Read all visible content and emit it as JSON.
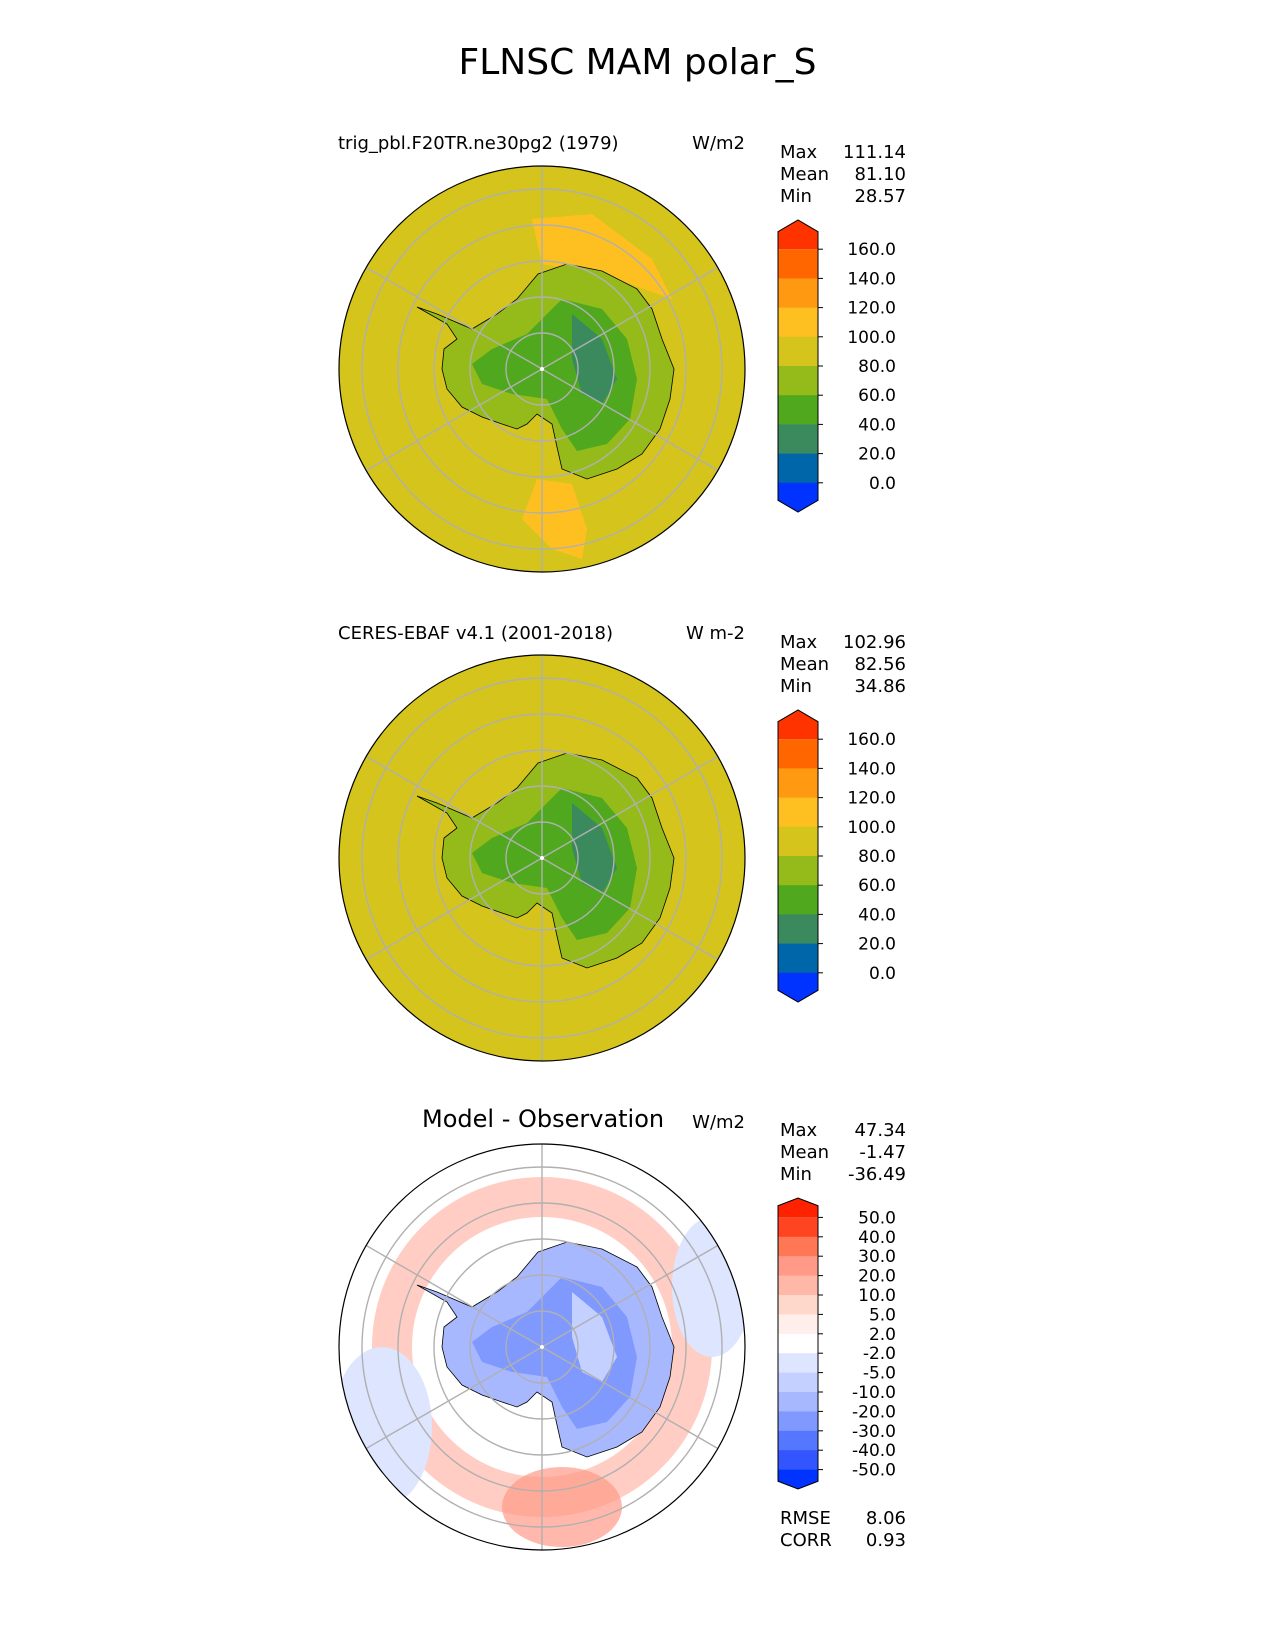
{
  "title": "FLNSC MAM polar_S",
  "panels": [
    {
      "id": "test",
      "left_title": "trig_pbl.F20TR.ne30pg2 (1979)",
      "right_title": "W/m2",
      "stats": [
        {
          "label": "Max",
          "value": "111.14"
        },
        {
          "label": "Mean",
          "value": "81.10"
        },
        {
          "label": "Min",
          "value": "28.57"
        }
      ],
      "colorbar": {
        "levels": [
          "160.0",
          "140.0",
          "120.0",
          "100.0",
          "80.0",
          "60.0",
          "40.0",
          "20.0",
          "0.0"
        ],
        "colors": [
          "#ff3300",
          "#ff6600",
          "#ff9911",
          "#fdc020",
          "#d4c41c",
          "#95bb1a",
          "#4fa81e",
          "#3b8a5e",
          "#0066aa",
          "#0033ff"
        ]
      },
      "map": {
        "ocean_color": "#d4c41c",
        "land_colors": [
          "#95bb1a",
          "#4fa81e",
          "#3b8a5e"
        ],
        "highlight_color": "#fdc020"
      }
    },
    {
      "id": "reference",
      "left_title": "CERES-EBAF v4.1 (2001-2018)",
      "right_title": "W m-2",
      "stats": [
        {
          "label": "Max",
          "value": "102.96"
        },
        {
          "label": "Mean",
          "value": "82.56"
        },
        {
          "label": "Min",
          "value": "34.86"
        }
      ],
      "colorbar": {
        "levels": [
          "160.0",
          "140.0",
          "120.0",
          "100.0",
          "80.0",
          "60.0",
          "40.0",
          "20.0",
          "0.0"
        ],
        "colors": [
          "#ff3300",
          "#ff6600",
          "#ff9911",
          "#fdc020",
          "#d4c41c",
          "#95bb1a",
          "#4fa81e",
          "#3b8a5e",
          "#0066aa",
          "#0033ff"
        ]
      },
      "map": {
        "ocean_color": "#d4c41c",
        "land_colors": [
          "#95bb1a",
          "#4fa81e",
          "#3b8a5e"
        ],
        "highlight_color": "#d4c41c"
      }
    },
    {
      "id": "diff",
      "center_title": "Model - Observation",
      "right_title": "W/m2",
      "stats": [
        {
          "label": "Max",
          "value": "47.34"
        },
        {
          "label": "Mean",
          "value": "-1.47"
        },
        {
          "label": "Min",
          "value": "-36.49"
        }
      ],
      "extra_stats": [
        {
          "label": "RMSE",
          "value": "8.06"
        },
        {
          "label": "CORR",
          "value": "0.93"
        }
      ],
      "colorbar": {
        "levels": [
          "50.0",
          "40.0",
          "30.0",
          "20.0",
          "10.0",
          "5.0",
          "2.0",
          "-2.0",
          "-5.0",
          "-10.0",
          "-20.0",
          "-30.0",
          "-40.0",
          "-50.0"
        ],
        "colors": [
          "#ff2200",
          "#ff4422",
          "#ff7755",
          "#ff9a88",
          "#ffb8a8",
          "#ffd8cc",
          "#ffeeea",
          "#ffffff",
          "#dde5ff",
          "#c4d0ff",
          "#a8b8ff",
          "#8099ff",
          "#5577ff",
          "#3355ff",
          "#0033ff"
        ]
      },
      "map": {
        "ocean_color": "#ffffff",
        "land_colors": [
          "#a8b8ff",
          "#8099ff",
          "#c4d0ff"
        ],
        "highlight_color": "#ff9a88"
      }
    }
  ]
}
